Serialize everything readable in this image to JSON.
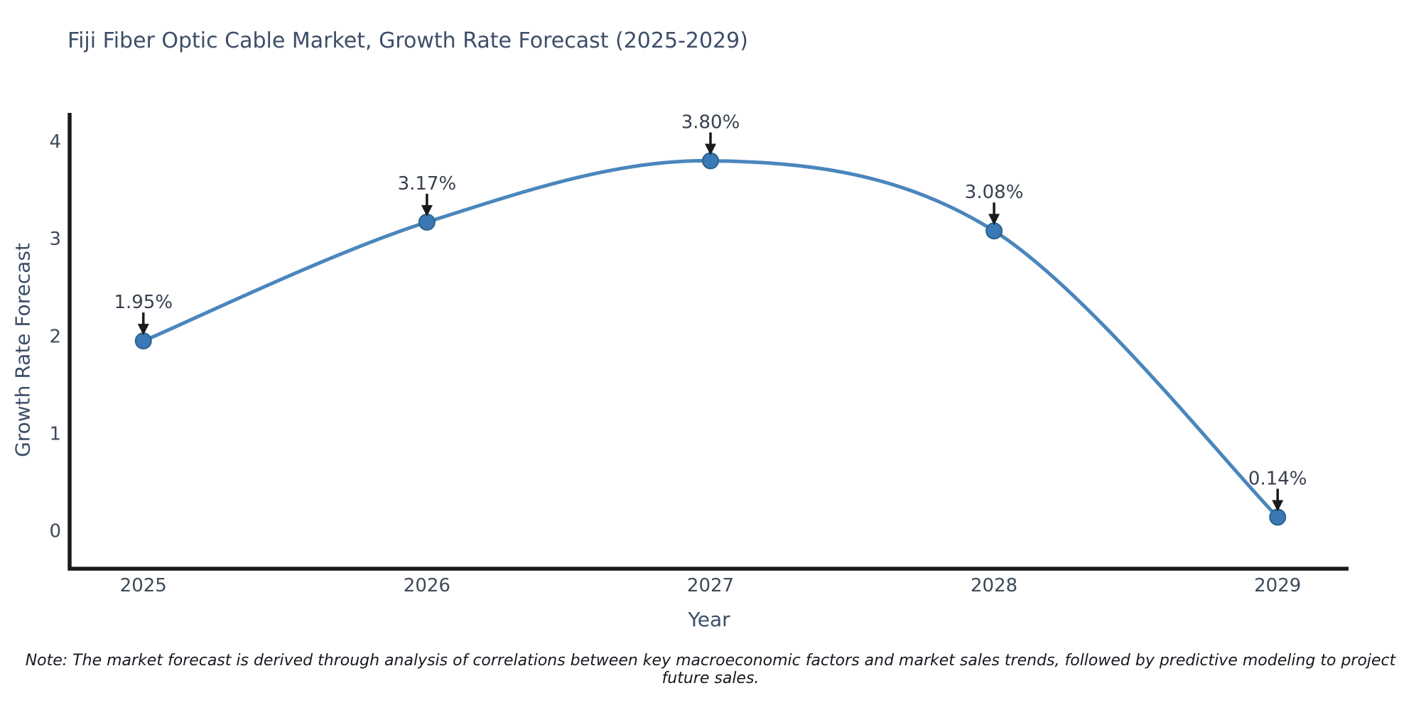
{
  "chart_data": {
    "type": "line",
    "title": "Fiji Fiber Optic Cable Market, Growth Rate Forecast (2025-2029)",
    "xlabel": "Year",
    "ylabel": "Growth Rate Forecast",
    "x": [
      2025,
      2026,
      2027,
      2028,
      2029
    ],
    "values": [
      1.95,
      3.17,
      3.8,
      3.08,
      0.14
    ],
    "point_labels": [
      "1.95%",
      "3.17%",
      "3.80%",
      "3.08%",
      "0.14%"
    ],
    "xticks": [
      2025,
      2026,
      2027,
      2028,
      2029
    ],
    "yticks": [
      0,
      1,
      2,
      3,
      4
    ],
    "xlim": [
      2024.74,
      2029.25
    ],
    "ylim": [
      -0.39,
      4.285
    ],
    "grid": false,
    "legend_position": "none",
    "line_shape": "spline",
    "colors": {
      "line": "#4a86bd",
      "marker": "#3a79b5",
      "marker_edge": "#2c628f",
      "axis": "#1a1a1a",
      "title_text": "#3d4e68",
      "tick_text": "#3f4a59",
      "annotation_text": "#38414f",
      "arrow": "#1a1a1a"
    },
    "note": "Note: The market forecast is derived through analysis of correlations between key macroeconomic factors and market sales trends, followed by predictive modeling to project future sales."
  }
}
